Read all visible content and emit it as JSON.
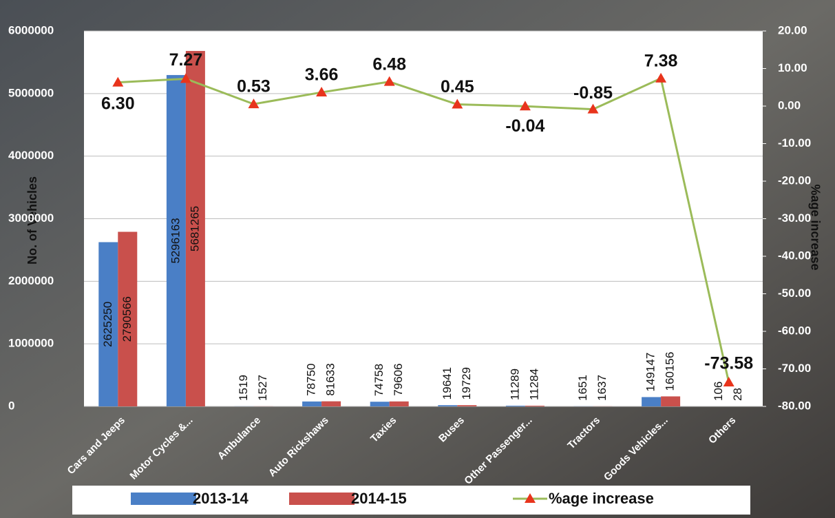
{
  "chart_data": {
    "type": "bar",
    "categories": [
      "Cars and Jeeps",
      "Motor Cycles &...",
      "Ambulance",
      "Auto Rickshaws",
      "Taxies",
      "Buses",
      "Other Passenger...",
      "Tractors",
      "Goods Vehicles...",
      "Others"
    ],
    "series": [
      {
        "name": "2013-14",
        "color": "#4a7fc6",
        "values": [
          2625250,
          5296163,
          1519,
          78750,
          74758,
          19641,
          11289,
          1651,
          149147,
          106
        ]
      },
      {
        "name": "2014-15",
        "color": "#c9504c",
        "values": [
          2790566,
          5681265,
          1527,
          81633,
          79606,
          19729,
          11284,
          1637,
          160156,
          28
        ]
      },
      {
        "name": "%age increase",
        "type": "line",
        "axis": "y2",
        "color": "#9bbb59",
        "marker_color": "#e8341c",
        "values": [
          6.3,
          7.27,
          0.53,
          3.66,
          6.48,
          0.45,
          -0.04,
          -0.85,
          7.38,
          -73.58
        ],
        "value_labels": [
          "6.30",
          "7.27",
          "0.53",
          "3.66",
          "6.48",
          "0.45",
          "-0.04",
          "-0.85",
          "7.38",
          "-73.58"
        ]
      }
    ],
    "ylabel": "No. of Vehicles",
    "y2label": "%age increase",
    "ylim": [
      0,
      6000000
    ],
    "yticks": [
      0,
      1000000,
      2000000,
      3000000,
      4000000,
      5000000,
      6000000
    ],
    "y2lim": [
      -80,
      20
    ],
    "y2ticks": [
      {
        "value": -80,
        "label": "-80.00"
      },
      {
        "value": -70,
        "label": "-70.00"
      },
      {
        "value": -60,
        "label": "-60.00"
      },
      {
        "value": -50,
        "label": "-50.00"
      },
      {
        "value": -40,
        "label": "-40.00"
      },
      {
        "value": -30,
        "label": "-30.00"
      },
      {
        "value": -20,
        "label": "-20.00"
      },
      {
        "value": -10,
        "label": "-10.00"
      },
      {
        "value": 0,
        "label": "0.00"
      },
      {
        "value": 10,
        "label": "10.00"
      },
      {
        "value": 20,
        "label": "20.00"
      }
    ],
    "grid": true,
    "legend": "bottom"
  }
}
